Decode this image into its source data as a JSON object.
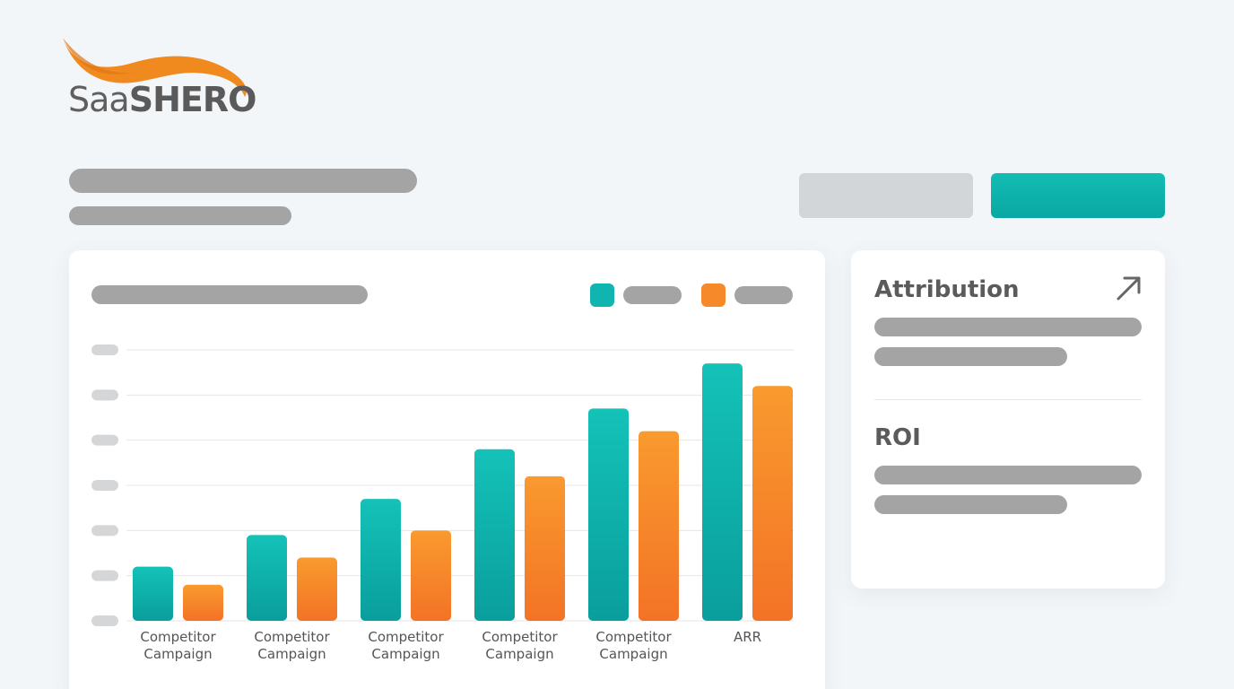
{
  "brand": {
    "name_light": "Saa",
    "name_bold": "SHERO",
    "swoosh_color": "#f08a1e"
  },
  "header": {
    "secondary_button_label": "",
    "primary_button_label": ""
  },
  "colors": {
    "series_a": "#0fb5ae",
    "series_b": "#f6892a",
    "placeholder": "#a4a4a4"
  },
  "chart_card": {
    "legend": [
      {
        "color": "#0fb5ae"
      },
      {
        "color": "#f6892a"
      }
    ]
  },
  "chart_data": {
    "type": "bar",
    "categories": [
      [
        "Competitor",
        "Campaign"
      ],
      [
        "Competitor",
        "Campaign"
      ],
      [
        "Competitor",
        "Campaign"
      ],
      [
        "Competitor",
        "Campaign"
      ],
      [
        "Competitor",
        "Campaign"
      ],
      [
        "ARR"
      ]
    ],
    "series": [
      {
        "values": [
          1.2,
          1.9,
          2.7,
          3.8,
          4.7,
          5.7
        ]
      },
      {
        "values": [
          0.8,
          1.4,
          2.0,
          3.2,
          4.2,
          5.2
        ]
      }
    ],
    "ylim": [
      0,
      6
    ],
    "yticks": 7,
    "grid": true
  },
  "side_card": {
    "sections": [
      {
        "title": "Attribution",
        "icon": "arrow-up-right-icon"
      },
      {
        "title": "ROI"
      }
    ]
  }
}
